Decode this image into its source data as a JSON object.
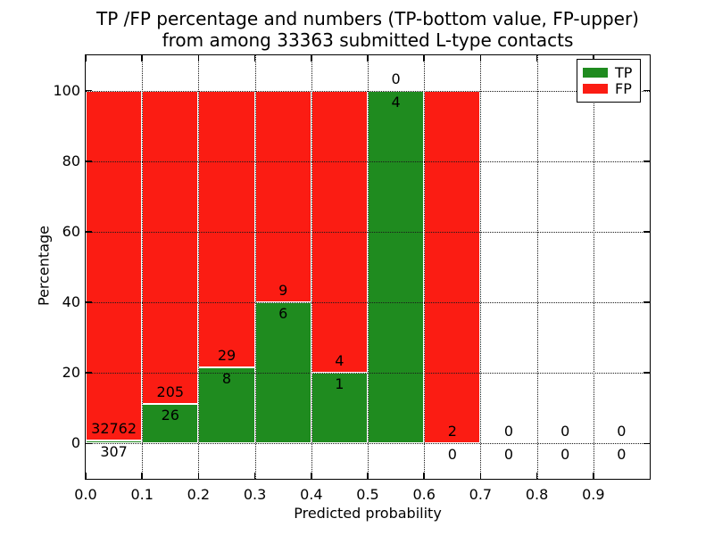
{
  "figure": {
    "title_lines": [
      "TP /FP percentage and numbers (TP-bottom value, FP-upper)",
      "from among 33363 submitted L-type contacts"
    ]
  },
  "chart_data": {
    "type": "bar",
    "stacked": true,
    "title": "TP /FP percentage and numbers (TP-bottom value, FP-upper) from among 33363 submitted L-type contacts",
    "xlabel": "Predicted probability",
    "ylabel": "Percentage",
    "total_submitted": 33363,
    "contact_type": "L-type",
    "categories": [
      "0.0-0.1",
      "0.1-0.2",
      "0.2-0.3",
      "0.3-0.4",
      "0.4-0.5",
      "0.5-0.6",
      "0.6-0.7",
      "0.7-0.8",
      "0.8-0.9",
      "0.9-1.0"
    ],
    "series": [
      {
        "name": "TP",
        "color": "#1f8b1f",
        "counts": [
          307,
          26,
          8,
          6,
          1,
          4,
          0,
          0,
          0,
          0
        ],
        "pct_heights": [
          0.93,
          11.26,
          21.62,
          40.0,
          20.0,
          100.0,
          0,
          0,
          0,
          0
        ]
      },
      {
        "name": "FP",
        "color": "#fb1c13",
        "counts": [
          32762,
          205,
          29,
          9,
          4,
          0,
          2,
          0,
          0,
          0
        ],
        "pct_heights": [
          99.07,
          88.74,
          78.38,
          60.0,
          80.0,
          0,
          100.0,
          0,
          0,
          0
        ]
      }
    ],
    "label_note": "TP count below segment top, FP count above segment top",
    "x_ticks": [
      "0.0",
      "0.1",
      "0.2",
      "0.3",
      "0.4",
      "0.5",
      "0.6",
      "0.7",
      "0.8",
      "0.9"
    ],
    "y_ticks": [
      "0",
      "20",
      "40",
      "60",
      "80",
      "100"
    ],
    "xlim": [
      0.0,
      1.0
    ],
    "ylim": [
      -10,
      110
    ],
    "grid": "dotted",
    "legend": {
      "position": "upper right",
      "entries": [
        {
          "label": "TP",
          "color": "#1f8b1f"
        },
        {
          "label": "FP",
          "color": "#fb1c13"
        }
      ]
    }
  }
}
